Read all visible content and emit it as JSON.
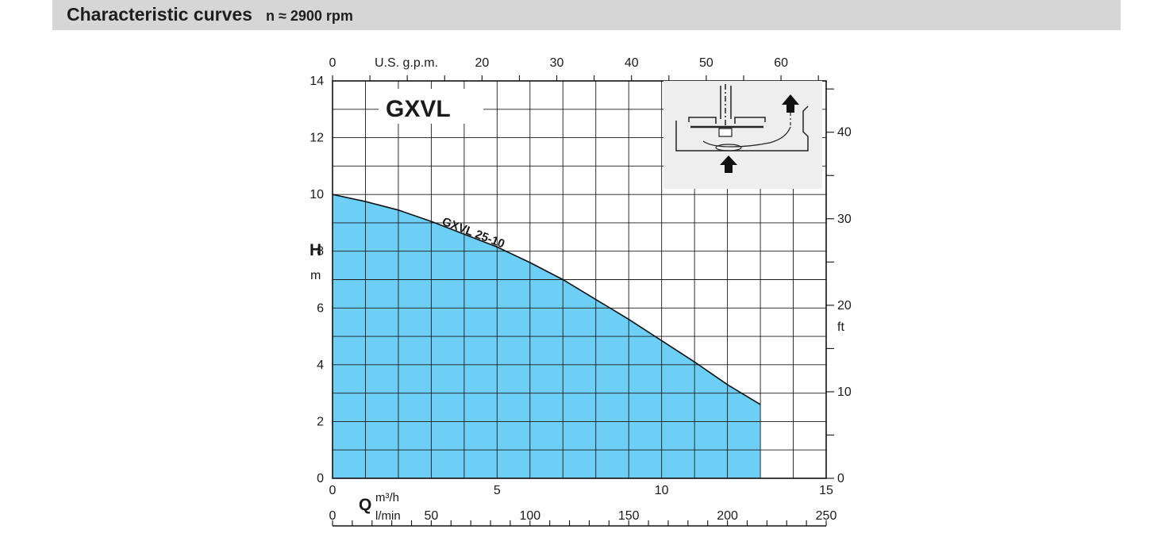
{
  "header": {
    "title": "Characteristic curves",
    "speed": "n ≈ 2900 rpm"
  },
  "chart_data": {
    "type": "area",
    "title": "GXVL",
    "series": [
      {
        "name": "GXVL 25-10",
        "x": [
          0,
          1,
          2,
          3,
          4,
          5,
          6,
          7,
          8,
          9,
          10,
          11,
          12,
          13
        ],
        "y": [
          10.0,
          9.75,
          9.45,
          9.05,
          8.6,
          8.15,
          7.6,
          7.0,
          6.3,
          5.6,
          4.85,
          4.1,
          3.3,
          2.6
        ],
        "color": "#6dcff6"
      }
    ],
    "xlim": [
      0,
      15
    ],
    "ylim": [
      0,
      14
    ],
    "x_axis": {
      "ticks": [
        0,
        5,
        10,
        15
      ],
      "minor_step": 1,
      "unit": "m³/h",
      "symbol": "Q"
    },
    "x_axis_lmin": {
      "ticks": [
        0,
        50,
        100,
        150,
        200,
        250
      ],
      "minor_step": 10,
      "unit": "l/min"
    },
    "x_axis_top": {
      "ticks": [
        0,
        20,
        30,
        40,
        50,
        60
      ],
      "minor_step": 5,
      "unit": "U.S. g.p.m."
    },
    "y_axis": {
      "ticks": [
        0,
        2,
        4,
        6,
        8,
        10,
        12,
        14
      ],
      "symbol": "H",
      "unit": "m"
    },
    "y_axis_right": {
      "ticks": [
        0,
        10,
        20,
        30,
        40
      ],
      "minor_step": 5,
      "unit": "ft"
    },
    "grid": true
  }
}
